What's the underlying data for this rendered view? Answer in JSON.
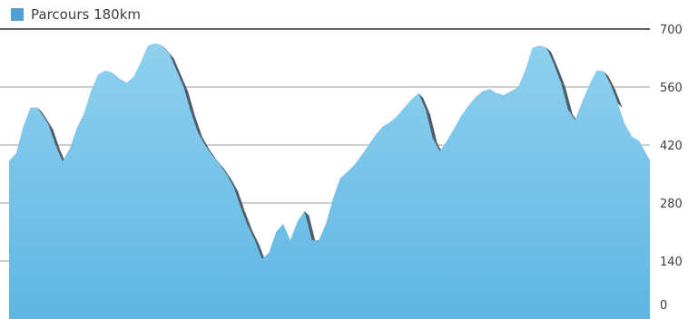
{
  "chart_data": {
    "type": "area",
    "legend": {
      "label": "Parcours 180km",
      "color": "#4f9fd0"
    },
    "ylim": [
      0,
      700
    ],
    "y_ticks": [
      "700",
      "560",
      "420",
      "280",
      "140",
      "0"
    ],
    "grid": true,
    "legend_position": "top-left",
    "series": [
      {
        "name": "Parcours 180km",
        "x": [
          0,
          2,
          4,
          6,
          8,
          11,
          13,
          15,
          17,
          19,
          21,
          23,
          25,
          27,
          29,
          31,
          33,
          35,
          37,
          39,
          41,
          43,
          45,
          47,
          49,
          51,
          53,
          55,
          57,
          59,
          61,
          63,
          65,
          67,
          69,
          71,
          73,
          75,
          77,
          79,
          81,
          83,
          85,
          87,
          89,
          91,
          93,
          95,
          97,
          99,
          101,
          103,
          105,
          107,
          109,
          111,
          113,
          115,
          117,
          119,
          121,
          123,
          125,
          127,
          129,
          131,
          133,
          135,
          137,
          139,
          141,
          143,
          145,
          147,
          149,
          151,
          153,
          155,
          157,
          159,
          161,
          163,
          165,
          167,
          169,
          171,
          173,
          175,
          177,
          180
        ],
        "values": [
          382,
          400,
          465,
          510,
          510,
          470,
          420,
          380,
          410,
          460,
          495,
          550,
          590,
          600,
          595,
          580,
          570,
          585,
          620,
          660,
          665,
          660,
          640,
          600,
          560,
          500,
          450,
          420,
          395,
          375,
          350,
          320,
          270,
          225,
          190,
          145,
          160,
          210,
          230,
          190,
          235,
          260,
          190,
          190,
          230,
          290,
          340,
          355,
          372,
          395,
          420,
          445,
          465,
          475,
          490,
          510,
          530,
          545,
          505,
          435,
          405,
          430,
          460,
          490,
          515,
          535,
          550,
          555,
          545,
          540,
          550,
          560,
          600,
          655,
          660,
          655,
          615,
          570,
          505,
          480,
          525,
          565,
          600,
          598,
          565,
          520,
          470,
          440,
          430,
          383
        ],
        "shadow": [
          false,
          false,
          false,
          true,
          true,
          true,
          true,
          true,
          false,
          false,
          false,
          false,
          false,
          false,
          true,
          true,
          false,
          false,
          false,
          false,
          true,
          true,
          true,
          true,
          true,
          true,
          true,
          true,
          true,
          true,
          true,
          true,
          true,
          true,
          true,
          false,
          false,
          false,
          false,
          false,
          true,
          true,
          true,
          false,
          false,
          false,
          false,
          false,
          false,
          false,
          false,
          false,
          false,
          false,
          false,
          false,
          false,
          true,
          true,
          true,
          false,
          false,
          false,
          false,
          false,
          false,
          false,
          false,
          true,
          true,
          false,
          false,
          false,
          false,
          true,
          true,
          true,
          true,
          true,
          false,
          false,
          false,
          false,
          true,
          true,
          false,
          false,
          false,
          false,
          true
        ]
      }
    ]
  }
}
